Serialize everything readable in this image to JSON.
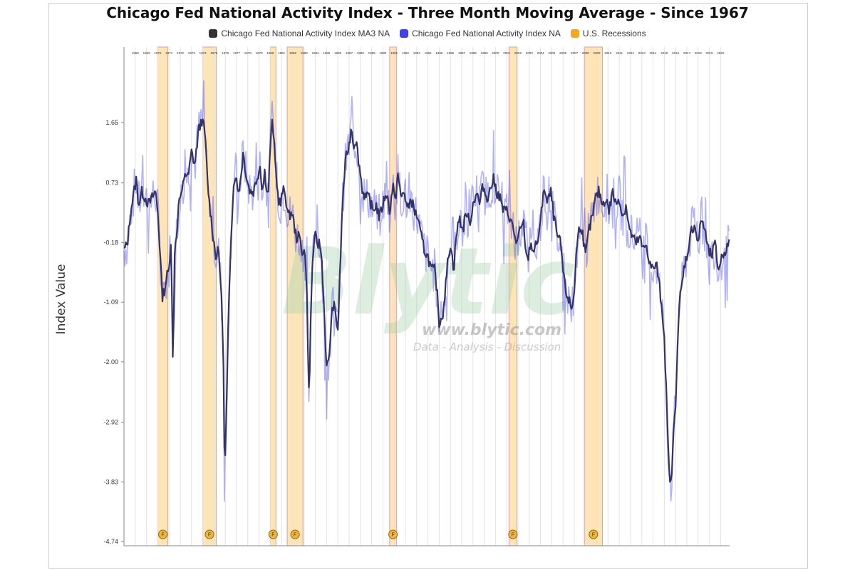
{
  "chart_data": {
    "type": "line",
    "title": "Chicago Fed National Activity Index - Three Month Moving Average - Since 1967",
    "xlabel": "",
    "ylabel": "Index Value",
    "ylim": [
      -4.74,
      2.5
    ],
    "y_ticks": [
      "1.65",
      "0.73",
      "-0.18",
      "-1.09",
      "-2.00",
      "-2.92",
      "-3.83",
      "-4.74"
    ],
    "x_ticks": [
      "1968",
      "1969",
      "1970",
      "1971",
      "1972",
      "1973",
      "1974",
      "1975",
      "1976",
      "1977",
      "1978",
      "1979",
      "1980",
      "1981",
      "1982",
      "1983",
      "1984",
      "1985",
      "1986",
      "1987",
      "1988",
      "1989",
      "1990",
      "1991",
      "1992",
      "1993",
      "1994",
      "1995",
      "1996",
      "1997",
      "1998",
      "1999",
      "2000",
      "2001",
      "2002",
      "2003",
      "2004",
      "2005",
      "2006",
      "2007",
      "2008",
      "2009",
      "2010",
      "2011",
      "2012",
      "2013",
      "2014",
      "2015",
      "2016",
      "2017",
      "2018",
      "2019",
      "2020"
    ],
    "x_range": [
      1967.0,
      2020.8
    ],
    "grid": "vertical",
    "legend_position": "top-center",
    "series": [
      {
        "name": "Chicago Fed National Activity Index MA3 NA",
        "color": "#333366",
        "points": [
          [
            1967.0,
            -0.3
          ],
          [
            1967.3,
            -0.2
          ],
          [
            1967.6,
            0.3
          ],
          [
            1967.9,
            0.6
          ],
          [
            1968.1,
            0.8
          ],
          [
            1968.3,
            0.4
          ],
          [
            1968.6,
            0.6
          ],
          [
            1968.9,
            0.5
          ],
          [
            1969.2,
            0.4
          ],
          [
            1969.5,
            0.5
          ],
          [
            1969.8,
            0.6
          ],
          [
            1970.0,
            0.3
          ],
          [
            1970.2,
            -0.3
          ],
          [
            1970.4,
            -1.0
          ],
          [
            1970.6,
            -0.9
          ],
          [
            1970.8,
            -0.7
          ],
          [
            1971.0,
            -0.6
          ],
          [
            1971.1,
            -0.3
          ],
          [
            1971.2,
            -0.1
          ],
          [
            1971.35,
            -2.2
          ],
          [
            1971.5,
            -0.3
          ],
          [
            1971.7,
            0.0
          ],
          [
            1971.9,
            0.5
          ],
          [
            1972.1,
            0.5
          ],
          [
            1972.4,
            0.9
          ],
          [
            1972.7,
            0.8
          ],
          [
            1973.0,
            1.2
          ],
          [
            1973.3,
            1.0
          ],
          [
            1973.6,
            1.5
          ],
          [
            1973.9,
            1.7
          ],
          [
            1974.2,
            1.5
          ],
          [
            1974.4,
            0.8
          ],
          [
            1974.6,
            0.4
          ],
          [
            1974.8,
            0.1
          ],
          [
            1975.0,
            -0.2
          ],
          [
            1975.2,
            -0.4
          ],
          [
            1975.4,
            -0.3
          ],
          [
            1975.6,
            -0.8
          ],
          [
            1975.8,
            -1.6
          ],
          [
            1975.95,
            -3.8
          ],
          [
            1976.1,
            -2.8
          ],
          [
            1976.3,
            -1.2
          ],
          [
            1976.5,
            -0.1
          ],
          [
            1976.7,
            0.6
          ],
          [
            1976.9,
            0.9
          ],
          [
            1977.1,
            0.6
          ],
          [
            1977.3,
            0.7
          ],
          [
            1977.6,
            1.2
          ],
          [
            1977.9,
            0.8
          ],
          [
            1978.2,
            0.6
          ],
          [
            1978.5,
            0.6
          ],
          [
            1978.8,
            0.8
          ],
          [
            1979.1,
            1.0
          ],
          [
            1979.3,
            0.6
          ],
          [
            1979.5,
            0.9
          ],
          [
            1979.8,
            0.5
          ],
          [
            1980.0,
            1.3
          ],
          [
            1980.2,
            1.7
          ],
          [
            1980.4,
            1.1
          ],
          [
            1980.7,
            0.5
          ],
          [
            1980.9,
            0.4
          ],
          [
            1981.1,
            0.6
          ],
          [
            1981.3,
            0.6
          ],
          [
            1981.6,
            0.2
          ],
          [
            1981.9,
            0.3
          ],
          [
            1982.1,
            0.1
          ],
          [
            1982.3,
            -0.1
          ],
          [
            1982.6,
            -0.1
          ],
          [
            1982.8,
            -0.3
          ],
          [
            1983.0,
            -0.3
          ],
          [
            1983.2,
            -0.6
          ],
          [
            1983.45,
            -2.7
          ],
          [
            1983.6,
            -1.2
          ],
          [
            1983.8,
            -0.3
          ],
          [
            1984.0,
            -0.1
          ],
          [
            1984.2,
            -0.2
          ],
          [
            1984.4,
            -0.2
          ],
          [
            1984.6,
            -0.5
          ],
          [
            1984.8,
            -1.3
          ],
          [
            1985.0,
            -2.1
          ],
          [
            1985.2,
            -2.0
          ],
          [
            1985.4,
            -1.4
          ],
          [
            1985.6,
            -1.1
          ],
          [
            1985.8,
            -1.3
          ],
          [
            1986.0,
            -1.5
          ],
          [
            1986.2,
            -0.6
          ],
          [
            1986.4,
            0.4
          ],
          [
            1986.6,
            0.9
          ],
          [
            1986.8,
            1.2
          ],
          [
            1987.0,
            1.3
          ],
          [
            1987.2,
            1.6
          ],
          [
            1987.4,
            1.3
          ],
          [
            1987.6,
            1.4
          ],
          [
            1987.9,
            1.0
          ],
          [
            1988.2,
            0.6
          ],
          [
            1988.5,
            0.5
          ],
          [
            1988.8,
            0.5
          ],
          [
            1989.1,
            0.3
          ],
          [
            1989.4,
            0.4
          ],
          [
            1989.7,
            0.2
          ],
          [
            1990.0,
            0.4
          ],
          [
            1990.3,
            0.6
          ],
          [
            1990.6,
            0.3
          ],
          [
            1990.9,
            0.7
          ],
          [
            1991.1,
            0.4
          ],
          [
            1991.3,
            0.9
          ],
          [
            1991.6,
            0.5
          ],
          [
            1991.9,
            0.6
          ],
          [
            1992.2,
            0.3
          ],
          [
            1992.5,
            0.5
          ],
          [
            1992.8,
            0.3
          ],
          [
            1993.1,
            0.2
          ],
          [
            1993.4,
            -0.1
          ],
          [
            1993.7,
            -0.3
          ],
          [
            1994.0,
            -0.4
          ],
          [
            1994.3,
            -0.6
          ],
          [
            1994.6,
            -0.6
          ],
          [
            1994.8,
            -0.9
          ],
          [
            1995.0,
            -1.4
          ],
          [
            1995.3,
            -1.3
          ],
          [
            1995.6,
            -0.8
          ],
          [
            1995.8,
            -0.4
          ],
          [
            1996.0,
            -0.2
          ],
          [
            1996.3,
            -0.6
          ],
          [
            1996.5,
            -0.1
          ],
          [
            1996.8,
            0.2
          ],
          [
            1997.1,
            0.0
          ],
          [
            1997.4,
            0.3
          ],
          [
            1997.7,
            0.1
          ],
          [
            1998.0,
            0.4
          ],
          [
            1998.3,
            0.6
          ],
          [
            1998.6,
            0.4
          ],
          [
            1998.9,
            0.7
          ],
          [
            1999.2,
            0.5
          ],
          [
            1999.5,
            0.6
          ],
          [
            1999.8,
            0.8
          ],
          [
            2000.1,
            0.6
          ],
          [
            2000.4,
            0.5
          ],
          [
            2000.7,
            0.3
          ],
          [
            2001.0,
            0.3
          ],
          [
            2001.3,
            0.2
          ],
          [
            2001.6,
            0.0
          ],
          [
            2001.9,
            -0.2
          ],
          [
            2002.2,
            0.0
          ],
          [
            2002.5,
            0.1
          ],
          [
            2002.8,
            -0.5
          ],
          [
            2003.1,
            -0.2
          ],
          [
            2003.4,
            -0.3
          ],
          [
            2003.7,
            -0.2
          ],
          [
            2004.0,
            0.1
          ],
          [
            2004.3,
            0.7
          ],
          [
            2004.6,
            0.4
          ],
          [
            2004.9,
            0.6
          ],
          [
            2005.2,
            0.2
          ],
          [
            2005.5,
            -0.1
          ],
          [
            2005.8,
            -0.2
          ],
          [
            2006.0,
            -0.6
          ],
          [
            2006.2,
            -0.9
          ],
          [
            2006.4,
            -1.0
          ],
          [
            2006.6,
            -1.1
          ],
          [
            2006.8,
            -1.2
          ],
          [
            2007.0,
            -0.9
          ],
          [
            2007.2,
            -0.3
          ],
          [
            2007.4,
            0.0
          ],
          [
            2007.6,
            0.1
          ],
          [
            2007.8,
            -0.1
          ],
          [
            2008.0,
            -0.4
          ],
          [
            2008.3,
            0.0
          ],
          [
            2008.6,
            0.2
          ],
          [
            2008.9,
            0.5
          ],
          [
            2009.2,
            0.6
          ],
          [
            2009.5,
            0.4
          ],
          [
            2009.8,
            0.5
          ],
          [
            2010.1,
            0.3
          ],
          [
            2010.4,
            0.6
          ],
          [
            2010.7,
            0.4
          ],
          [
            2011.0,
            0.5
          ],
          [
            2011.3,
            0.2
          ],
          [
            2011.6,
            0.4
          ],
          [
            2011.9,
            0.0
          ],
          [
            2012.2,
            -0.1
          ],
          [
            2012.5,
            -0.2
          ],
          [
            2012.8,
            -0.1
          ],
          [
            2013.1,
            -0.3
          ],
          [
            2013.4,
            -0.2
          ],
          [
            2013.7,
            -0.5
          ],
          [
            2014.0,
            -0.6
          ],
          [
            2014.3,
            -0.5
          ],
          [
            2014.6,
            -0.9
          ],
          [
            2014.8,
            -1.2
          ],
          [
            2015.0,
            -1.6
          ],
          [
            2015.2,
            -2.6
          ],
          [
            2015.4,
            -3.6
          ],
          [
            2015.6,
            -3.9
          ],
          [
            2015.8,
            -3.2
          ],
          [
            2016.0,
            -2.6
          ],
          [
            2016.2,
            -1.6
          ],
          [
            2016.4,
            -1.0
          ],
          [
            2016.6,
            -0.8
          ],
          [
            2016.8,
            -0.5
          ],
          [
            2017.0,
            -0.4
          ],
          [
            2017.2,
            -0.2
          ],
          [
            2017.4,
            0.0
          ],
          [
            2017.7,
            0.1
          ],
          [
            2018.0,
            -0.2
          ],
          [
            2018.3,
            0.2
          ],
          [
            2018.6,
            0.0
          ],
          [
            2018.9,
            -0.3
          ],
          [
            2019.2,
            -0.4
          ],
          [
            2019.5,
            -0.2
          ],
          [
            2019.8,
            -0.6
          ],
          [
            2020.1,
            -0.4
          ],
          [
            2020.4,
            -0.3
          ],
          [
            2020.8,
            -0.2
          ]
        ]
      },
      {
        "name": "Chicago Fed National Activity Index NA",
        "color": "#5555ee",
        "amplitude": 0.35
      },
      {
        "name": "U.S. Recessions",
        "color": "#f5a623",
        "ranges": [
          [
            1970.0,
            1970.9
          ],
          [
            1974.0,
            1975.2
          ],
          [
            1980.0,
            1980.5
          ],
          [
            1981.5,
            1982.9
          ],
          [
            1990.6,
            1991.2
          ],
          [
            2001.2,
            2001.9
          ],
          [
            2007.9,
            2009.5
          ]
        ]
      }
    ]
  }
}
